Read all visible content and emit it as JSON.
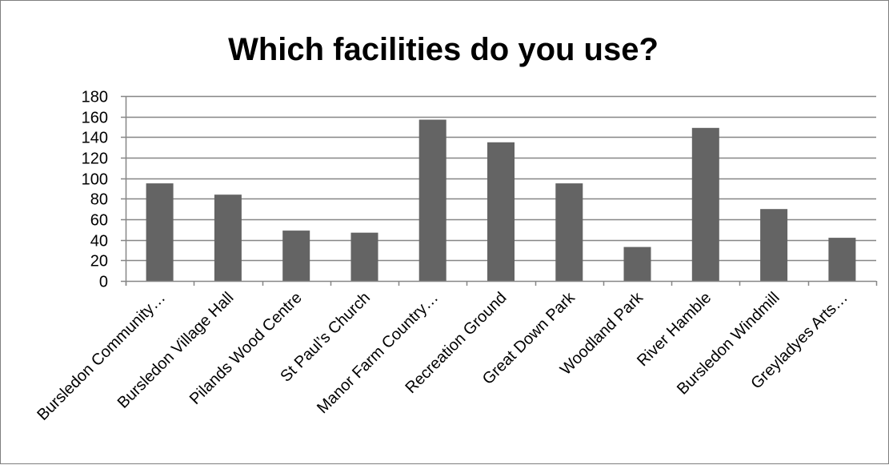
{
  "chart_data": {
    "type": "bar",
    "title": "Which facilities do you use?",
    "categories": [
      "Bursledon Community…",
      "Bursledon Village Hall",
      "Pilands Wood Centre",
      "St Paul’s Church",
      "Manor Farm Country…",
      "Recreation Ground",
      "Great Down Park",
      "Woodland Park",
      "River Hamble",
      "Bursledon Windmill",
      "Greyladyes Arts…"
    ],
    "values": [
      95,
      84,
      49,
      47,
      157,
      135,
      95,
      33,
      149,
      70,
      42
    ],
    "ylim": [
      0,
      180
    ],
    "yticks": [
      0,
      20,
      40,
      60,
      80,
      100,
      120,
      140,
      160,
      180
    ],
    "xlabel": "",
    "ylabel": "",
    "grid": true,
    "legend": "none",
    "colors": {
      "bar": "#646464",
      "grid": "#868686",
      "axis": "#868686",
      "border": "#7f7f7f"
    }
  }
}
